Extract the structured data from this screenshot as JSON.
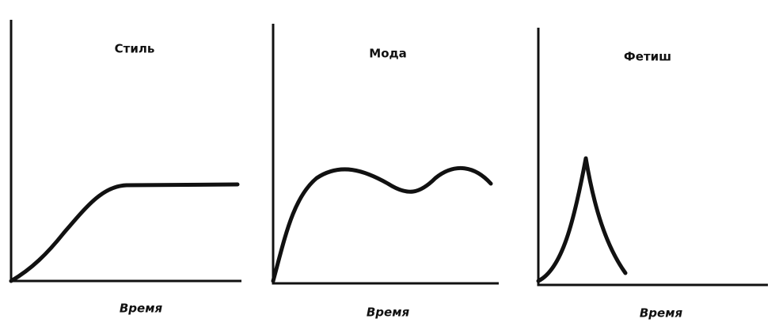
{
  "panels": [
    {
      "title": "Стиль",
      "x_label": "Время"
    },
    {
      "title": "Мода",
      "x_label": "Время"
    },
    {
      "title": "Фетиш",
      "x_label": "Время"
    }
  ]
}
